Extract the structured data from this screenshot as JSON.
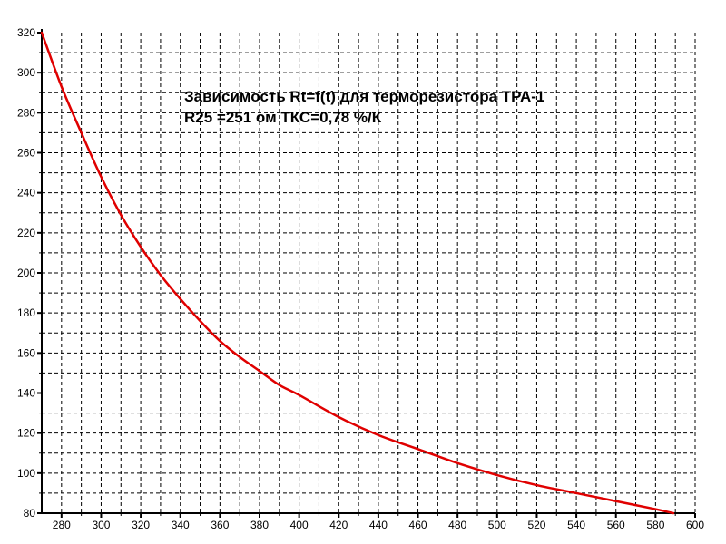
{
  "chart_data": {
    "type": "line",
    "title": "Зависимость Rt=f(t) для терморезистора ТРА-1",
    "subtitle": "R25 =251 ом ТКС=0,78 %/К",
    "xlabel": "",
    "ylabel": "",
    "xlim": [
      270,
      600
    ],
    "ylim": [
      80,
      320
    ],
    "x_ticks": [
      280,
      300,
      320,
      340,
      360,
      380,
      400,
      420,
      440,
      460,
      480,
      500,
      520,
      540,
      560,
      580,
      600
    ],
    "y_ticks": [
      80,
      100,
      120,
      140,
      160,
      180,
      200,
      220,
      240,
      260,
      280,
      300,
      320
    ],
    "grid": true,
    "grid_style": "dashed",
    "series": [
      {
        "name": "",
        "color": "#e00000",
        "x": [
          270,
          280,
          290,
          300,
          310,
          320,
          330,
          340,
          350,
          360,
          370,
          380,
          390,
          400,
          420,
          440,
          460,
          480,
          500,
          520,
          540,
          560,
          580,
          589
        ],
        "y": [
          320,
          293,
          270,
          248,
          229,
          213,
          199,
          187,
          176,
          166,
          158,
          151,
          144,
          139,
          128,
          119,
          112,
          105,
          99,
          94,
          90,
          86,
          82,
          80
        ]
      }
    ]
  }
}
